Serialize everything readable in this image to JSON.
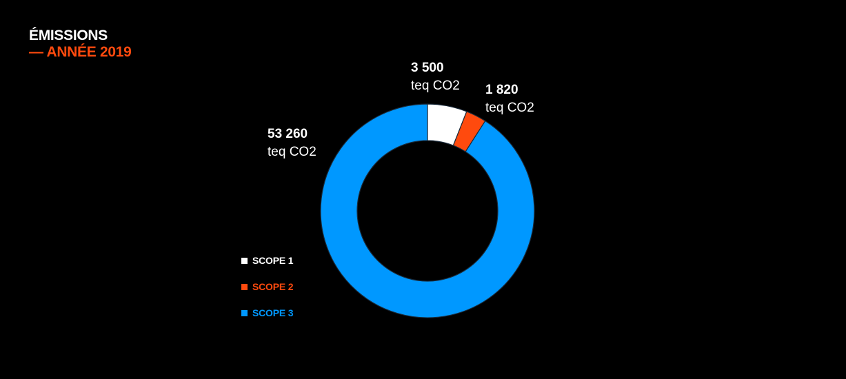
{
  "header": {
    "title": "ÉMISSIONS",
    "subtitle": "— ANNÉE 2019"
  },
  "colors": {
    "background": "#000000",
    "accent": "#ff4a0e",
    "scope1": "#ffffff",
    "scope2": "#ff4a0e",
    "scope3": "#0098ff"
  },
  "chart_data": {
    "type": "pie",
    "variant": "donut",
    "title": "ÉMISSIONS",
    "subtitle": "— ANNÉE 2019",
    "unit": "teq CO2",
    "legend_position": "bottom-left",
    "series": [
      {
        "name": "SCOPE 1",
        "value": 3500,
        "label": "3 500",
        "color": "#ffffff"
      },
      {
        "name": "SCOPE 2",
        "value": 1820,
        "label": "1 820",
        "color": "#ff4a0e"
      },
      {
        "name": "SCOPE 3",
        "value": 53260,
        "label": "53 260",
        "color": "#0098ff"
      }
    ]
  }
}
